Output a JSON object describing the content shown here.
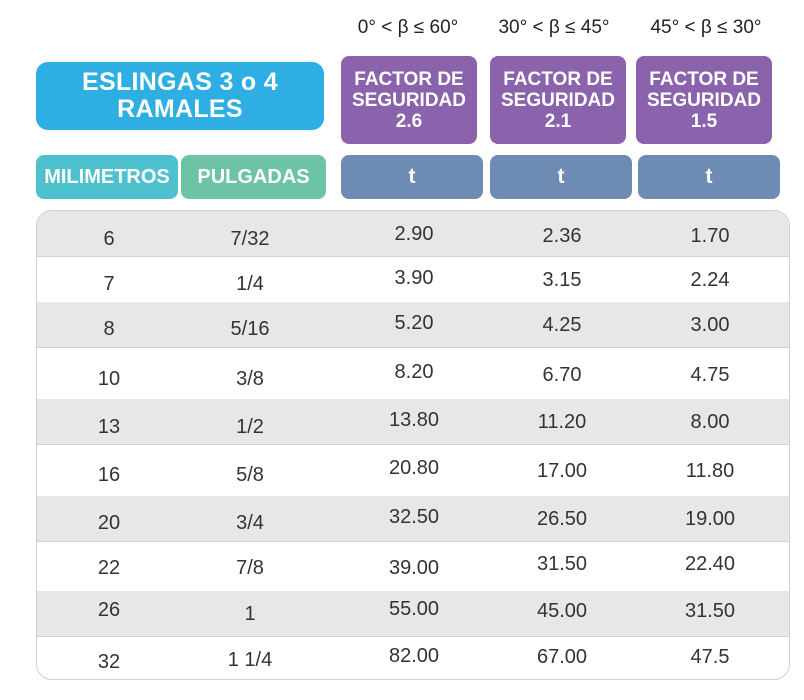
{
  "angles": [
    "0° < β ≤ 60°",
    "30° < β ≤ 45°",
    "45° < β ≤ 30°"
  ],
  "title": "ESLINGAS 3 o 4 RAMALES",
  "factors": [
    {
      "line1": "FACTOR DE",
      "line2": "SEGURIDAD",
      "value": "2.6"
    },
    {
      "line1": "FACTOR DE",
      "line2": "SEGURIDAD",
      "value": "2.1"
    },
    {
      "line1": "FACTOR DE",
      "line2": "SEGURIDAD",
      "value": "1.5"
    }
  ],
  "headers": {
    "mm": "MILIMETROS",
    "inches": "PULGADAS",
    "units": [
      "t",
      "t",
      "t"
    ]
  },
  "rows": [
    {
      "mm": "6",
      "in": "7/32",
      "f26": "2.90",
      "f21": "2.36",
      "f15": "1.70"
    },
    {
      "mm": "7",
      "in": "1/4",
      "f26": "3.90",
      "f21": "3.15",
      "f15": "2.24"
    },
    {
      "mm": "8",
      "in": "5/16",
      "f26": "5.20",
      "f21": "4.25",
      "f15": "3.00"
    },
    {
      "mm": "10",
      "in": "3/8",
      "f26": "8.20",
      "f21": "6.70",
      "f15": "4.75"
    },
    {
      "mm": "13",
      "in": "1/2",
      "f26": "13.80",
      "f21": "11.20",
      "f15": "8.00"
    },
    {
      "mm": "16",
      "in": "5/8",
      "f26": "20.80",
      "f21": "17.00",
      "f15": "11.80"
    },
    {
      "mm": "20",
      "in": "3/4",
      "f26": "32.50",
      "f21": "26.50",
      "f15": "19.00"
    },
    {
      "mm": "22",
      "in": "7/8",
      "f26": "39.00",
      "f21": "31.50",
      "f15": "22.40"
    },
    {
      "mm": "26",
      "in": "1",
      "f26": "55.00",
      "f21": "45.00",
      "f15": "31.50"
    },
    {
      "mm": "32",
      "in": "1 1/4",
      "f26": "82.00",
      "f21": "67.00",
      "f15": "47.5"
    }
  ]
}
